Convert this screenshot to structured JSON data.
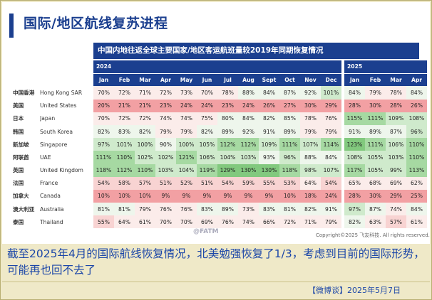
{
  "header": {
    "title": "国际/地区航线复苏进程",
    "subtitle": "中国内地往返全球主要国家/地区客运航班量较2019年同期恢复情况"
  },
  "chart_data": {
    "type": "table",
    "years": [
      {
        "label": "2024",
        "months": [
          "Jan",
          "Feb",
          "Mar",
          "Apr",
          "May",
          "Jun",
          "Jul",
          "Aug",
          "Sept",
          "Oct",
          "Nov",
          "Dec"
        ]
      },
      {
        "label": "2025",
        "months": [
          "Jan",
          "Feb",
          "Mar",
          "Apr"
        ]
      }
    ],
    "rows": [
      {
        "cn": "中国香港",
        "en": "Hong Kong SAR",
        "values": [
          "70%",
          "72%",
          "71%",
          "72%",
          "73%",
          "70%",
          "78%",
          "88%",
          "84%",
          "87%",
          "92%",
          "101%",
          "84%",
          "79%",
          "78%",
          "84%"
        ]
      },
      {
        "cn": "美国",
        "en": "United States",
        "values": [
          "20%",
          "21%",
          "21%",
          "23%",
          "24%",
          "24%",
          "23%",
          "24%",
          "26%",
          "27%",
          "30%",
          "29%",
          "28%",
          "30%",
          "28%",
          "26%"
        ]
      },
      {
        "cn": "日本",
        "en": "Japan",
        "values": [
          "70%",
          "72%",
          "72%",
          "74%",
          "74%",
          "75%",
          "80%",
          "84%",
          "82%",
          "85%",
          "78%",
          "76%",
          "115%",
          "111%",
          "109%",
          "108%"
        ]
      },
      {
        "cn": "韩国",
        "en": "South Korea",
        "values": [
          "82%",
          "83%",
          "82%",
          "79%",
          "79%",
          "82%",
          "89%",
          "92%",
          "91%",
          "89%",
          "79%",
          "79%",
          "91%",
          "89%",
          "87%",
          "96%"
        ]
      },
      {
        "cn": "新加坡",
        "en": "Singapore",
        "values": [
          "97%",
          "101%",
          "100%",
          "90%",
          "100%",
          "105%",
          "112%",
          "112%",
          "109%",
          "111%",
          "107%",
          "114%",
          "123%",
          "111%",
          "106%",
          "110%"
        ]
      },
      {
        "cn": "阿联酋",
        "en": "UAE",
        "values": [
          "111%",
          "110%",
          "102%",
          "102%",
          "121%",
          "106%",
          "104%",
          "103%",
          "93%",
          "96%",
          "88%",
          "84%",
          "108%",
          "105%",
          "103%",
          "110%"
        ]
      },
      {
        "cn": "英国",
        "en": "United Kingdom",
        "values": [
          "118%",
          "112%",
          "110%",
          "103%",
          "104%",
          "119%",
          "129%",
          "130%",
          "130%",
          "118%",
          "98%",
          "107%",
          "117%",
          "105%",
          "99%",
          "113%"
        ]
      },
      {
        "cn": "法国",
        "en": "France",
        "values": [
          "54%",
          "58%",
          "57%",
          "51%",
          "52%",
          "51%",
          "54%",
          "59%",
          "55%",
          "53%",
          "64%",
          "54%",
          "65%",
          "68%",
          "69%",
          "62%"
        ]
      },
      {
        "cn": "加拿大",
        "en": "Canada",
        "values": [
          "10%",
          "10%",
          "10%",
          "9%",
          "9%",
          "9%",
          "9%",
          "9%",
          "9%",
          "10%",
          "18%",
          "24%",
          "28%",
          "30%",
          "29%",
          "25%"
        ]
      },
      {
        "cn": "澳大利亚",
        "en": "Australia",
        "values": [
          "81%",
          "81%",
          "79%",
          "76%",
          "76%",
          "83%",
          "89%",
          "73%",
          "83%",
          "81%",
          "82%",
          "91%",
          "97%",
          "87%",
          "74%",
          "84%"
        ]
      },
      {
        "cn": "泰国",
        "en": "Thailand",
        "values": [
          "55%",
          "64%",
          "61%",
          "70%",
          "70%",
          "69%",
          "76%",
          "74%",
          "66%",
          "72%",
          "71%",
          "79%",
          "82%",
          "63%",
          "57%",
          "61%"
        ]
      }
    ]
  },
  "watermark": "@FATM",
  "footnote": "Copyright©2025 飞友科技. All rights reserved.",
  "caption": "截至2025年4月的国际航线恢复情况，北美勉强恢复了1/3，考虑到目前的国际形势，可能再也回不去了",
  "footer": "【微博谈】2025年5月7日"
}
